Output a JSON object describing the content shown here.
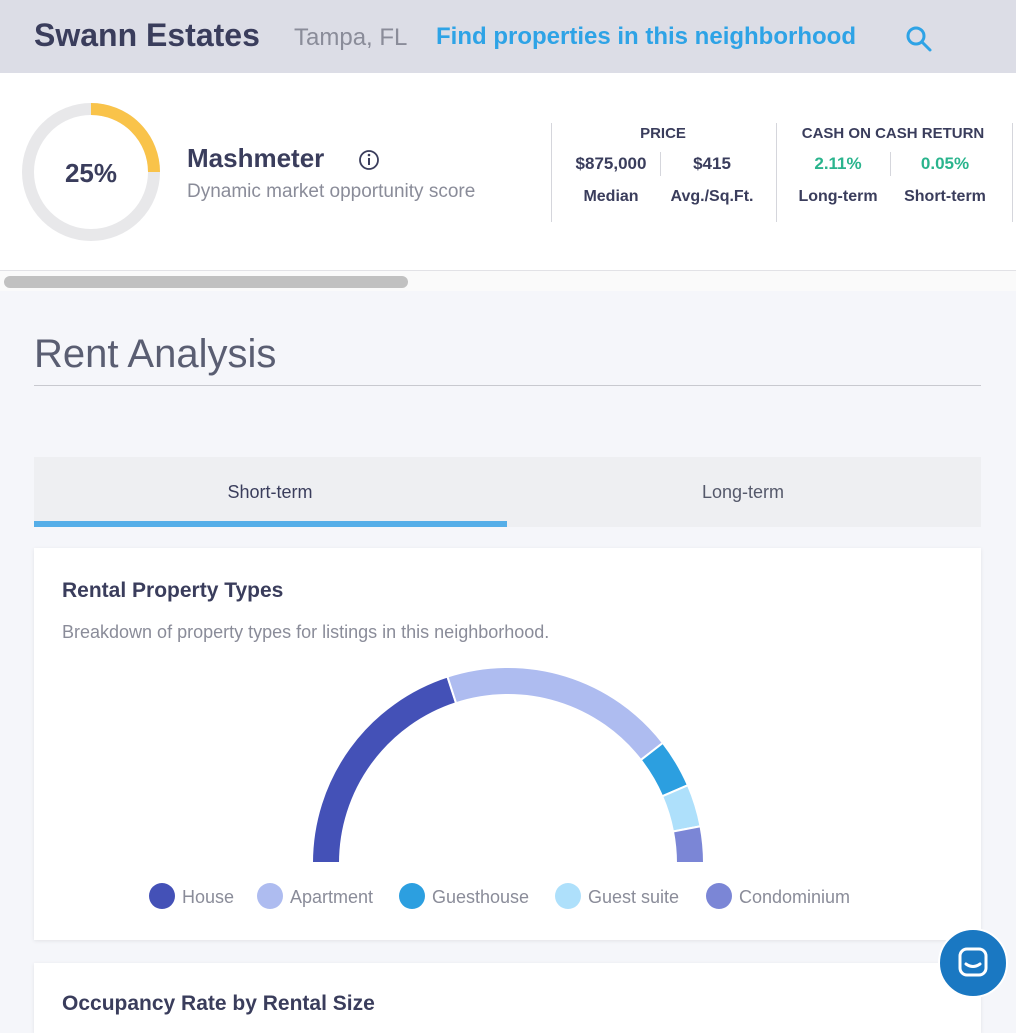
{
  "header": {
    "title": "Swann Estates",
    "location": "Tampa, FL",
    "link": "Find properties in this neighborhood"
  },
  "summary": {
    "mashmeter": {
      "score": {
        "value": 25,
        "label": "25%"
      },
      "title": "Mashmeter",
      "subtitle": "Dynamic market opportunity score"
    },
    "price": {
      "title": "PRICE",
      "items": [
        {
          "value": "$875,000",
          "label": "Median"
        },
        {
          "value": "$415",
          "label": "Avg./Sq.Ft."
        }
      ]
    },
    "cash_on_cash": {
      "title": "CASH ON CASH RETURN",
      "items": [
        {
          "value": "2.11%",
          "label": "Long-term"
        },
        {
          "value": "0.05%",
          "label": "Short-term"
        }
      ]
    }
  },
  "section": {
    "title": "Rent Analysis",
    "tabs": [
      "Short-term",
      "Long-term"
    ]
  },
  "card": {
    "title": "Rental Property Types",
    "subtitle": "Breakdown of property types for listings in this neighborhood."
  },
  "chart_data": {
    "type": "half-donut",
    "categories": [
      "House",
      "Apartment",
      "Guesthouse",
      "Guest suite",
      "Condominium"
    ],
    "values": [
      40,
      39,
      8,
      7,
      6
    ],
    "colors": [
      "#4451b7",
      "#aebcf0",
      "#2c9fe0",
      "#aee0fb",
      "#7b86d6"
    ]
  },
  "next_card": {
    "title": "Occupancy Rate by Rental Size"
  }
}
